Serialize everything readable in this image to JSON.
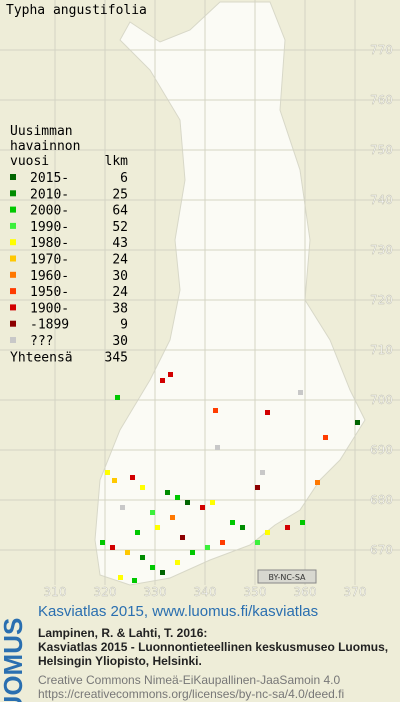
{
  "title": "Typha angustifolia",
  "legend": {
    "header": [
      "Uusimman",
      "havainnon"
    ],
    "col_year": "vuosi",
    "col_count": "lkm",
    "rows": [
      {
        "label": "2015-",
        "count": "6",
        "color": "#006400"
      },
      {
        "label": "2010-",
        "count": "25",
        "color": "#008c00"
      },
      {
        "label": "2000-",
        "count": "64",
        "color": "#00c800"
      },
      {
        "label": "1990-",
        "count": "52",
        "color": "#3cf03c"
      },
      {
        "label": "1980-",
        "count": "43",
        "color": "#ffff00"
      },
      {
        "label": "1970-",
        "count": "24",
        "color": "#ffc800"
      },
      {
        "label": "1960-",
        "count": "30",
        "color": "#ff7800"
      },
      {
        "label": "1950-",
        "count": "24",
        "color": "#ff3c00"
      },
      {
        "label": "1900-",
        "count": "38",
        "color": "#d20000"
      },
      {
        "label": "-1899",
        "count": "9",
        "color": "#8c0000"
      },
      {
        "label": "???",
        "count": "30",
        "color": "#c8c8c8"
      }
    ],
    "total_label": "Yhteensä",
    "total": "345"
  },
  "grid": {
    "y_labels": [
      "770",
      "760",
      "750",
      "740",
      "730",
      "720",
      "710",
      "700",
      "690",
      "680",
      "670"
    ],
    "x_labels": [
      "310",
      "320",
      "330",
      "340",
      "350",
      "360",
      "370"
    ]
  },
  "license_badge": "BY-NC-SA",
  "footer": {
    "logo": "LUOMUS",
    "headline": "Kasviatlas 2015, www.luomus.fi/kasviatlas",
    "citation": [
      "Lampinen, R. & Lahti, T. 2016:",
      "Kasviatlas 2015 - Luonnontieteellinen keskusmuseo Luomus,",
      "Helsingin Yliopisto, Helsinki."
    ],
    "license": [
      "Creative Commons Nimeä-EiKaupallinen-JaaSamoin 4.0",
      "https://creativecommons.org/licenses/by-nc-sa/4.0/deed.fi"
    ]
  }
}
